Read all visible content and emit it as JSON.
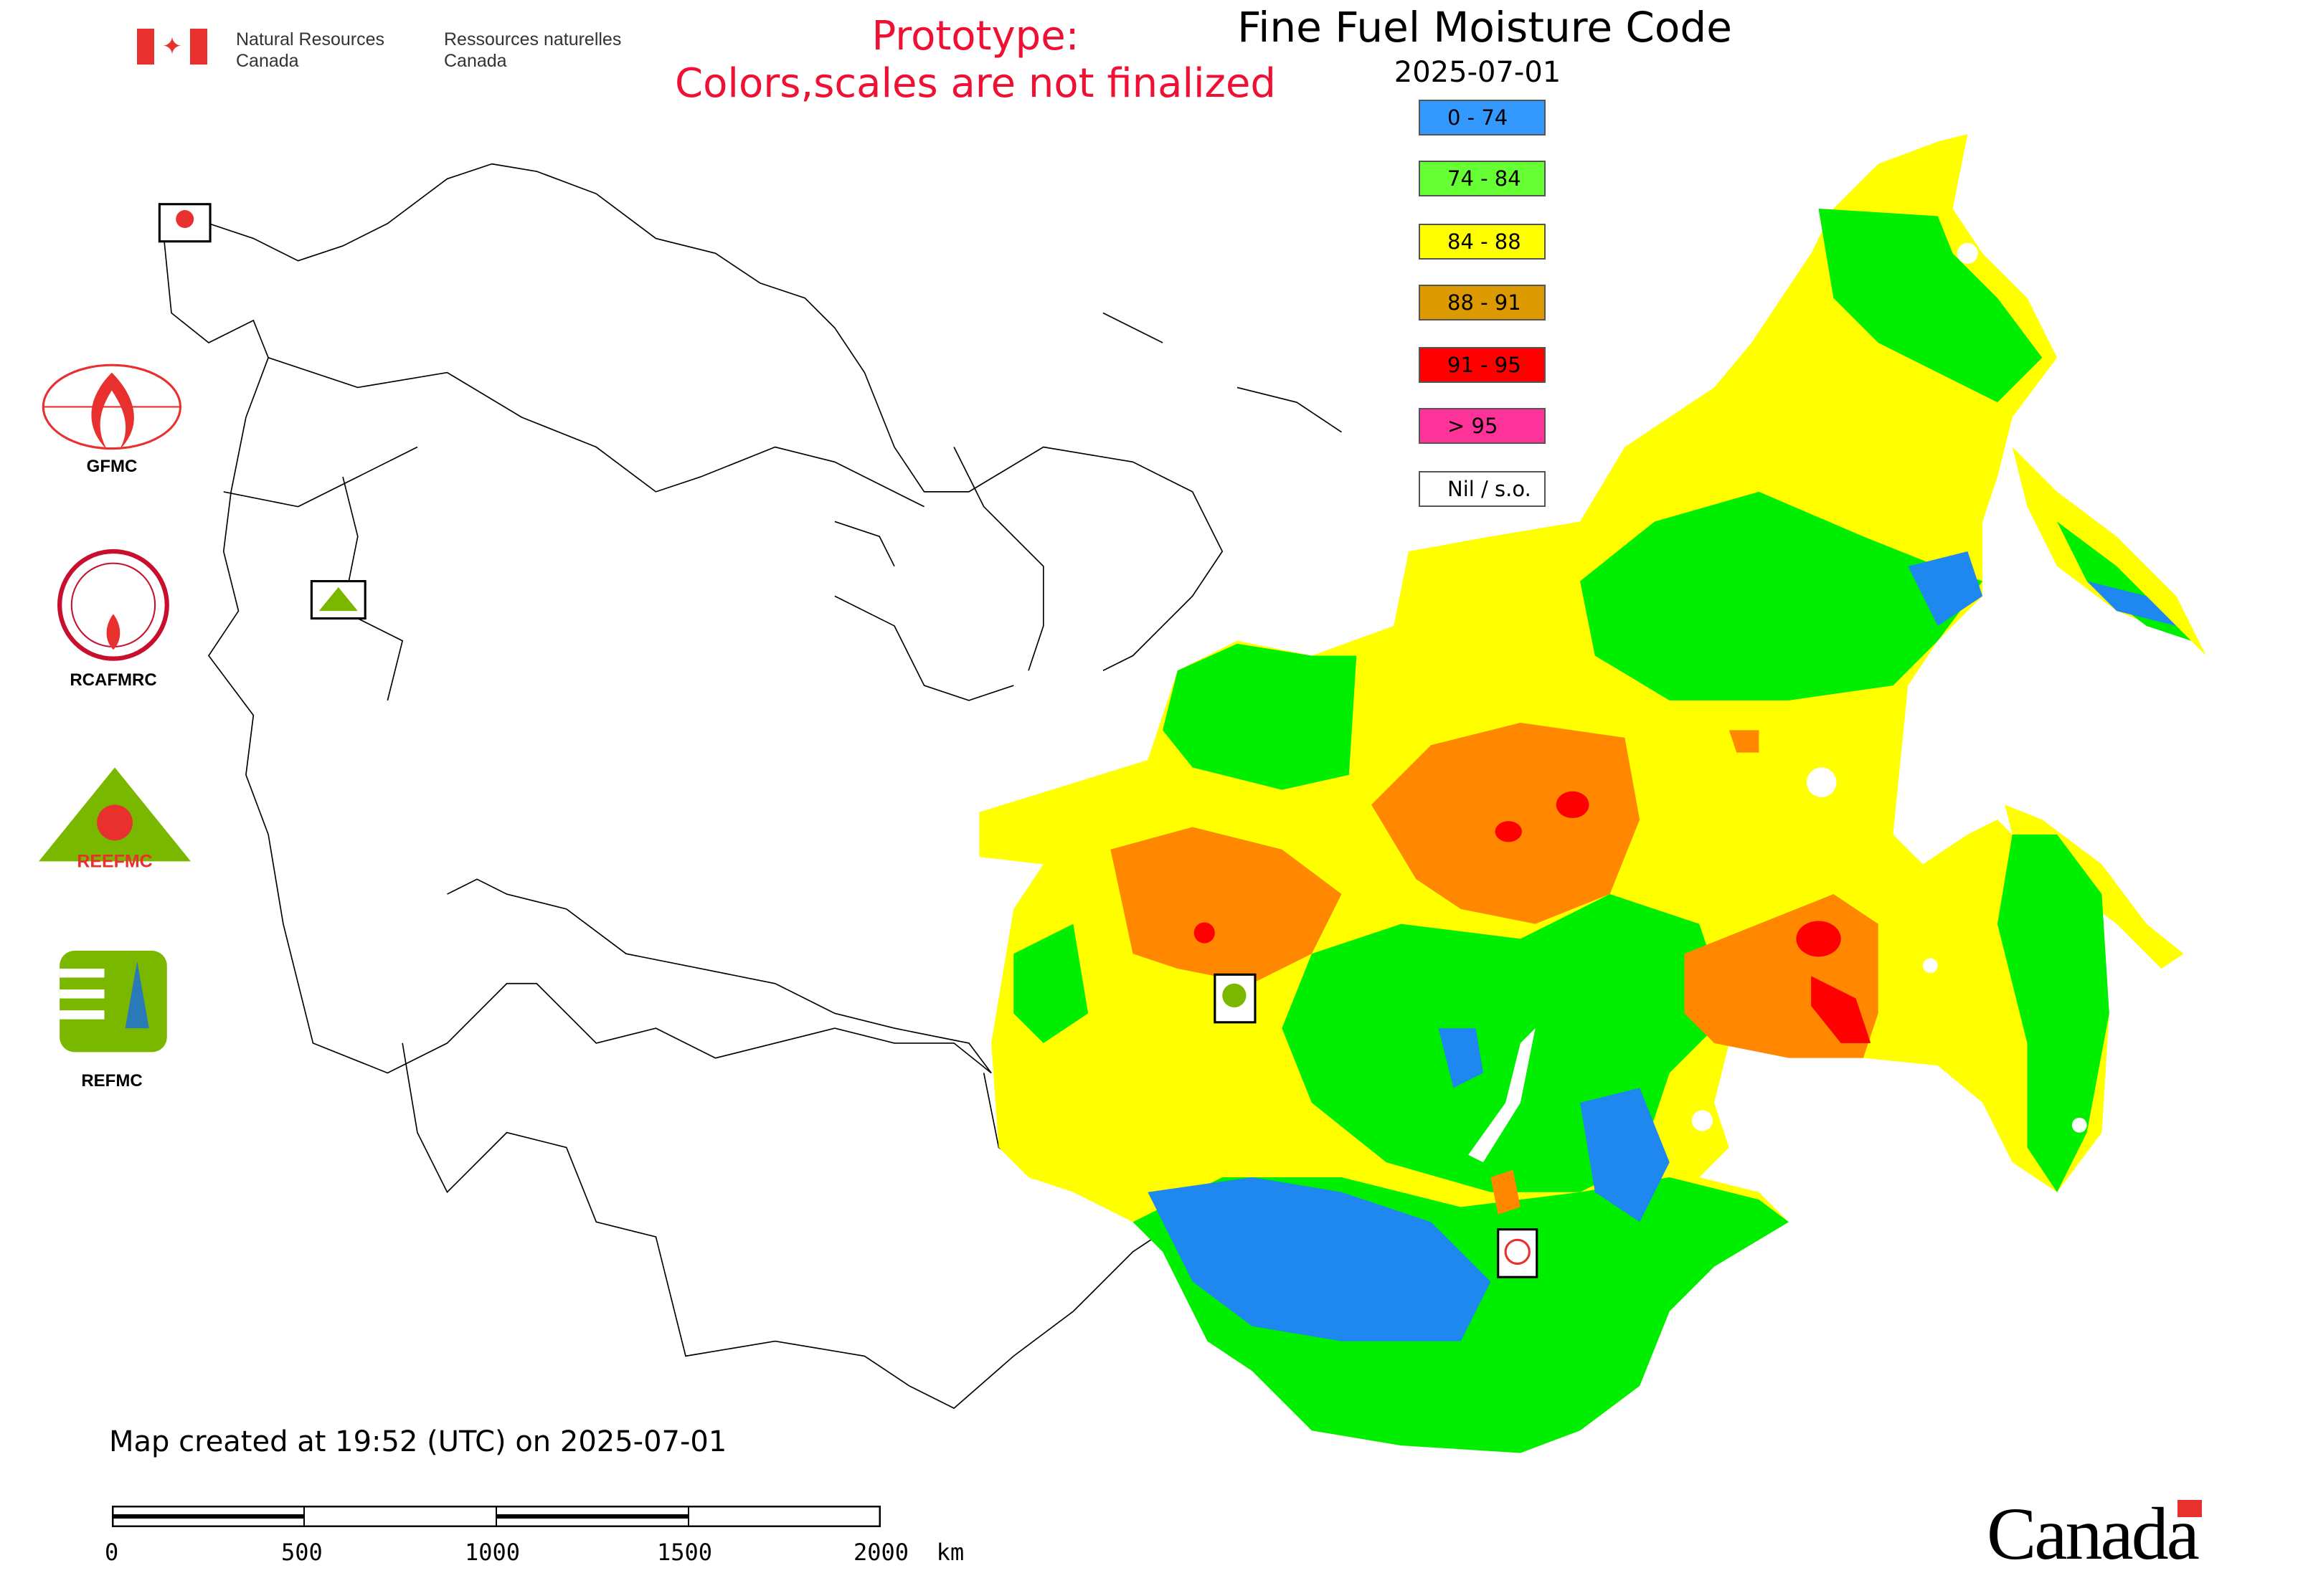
{
  "header": {
    "department_en": [
      "Natural Resources",
      "Canada"
    ],
    "department_fr": [
      "Ressources naturelles",
      "Canada"
    ],
    "prototype_line1": "Prototype:",
    "prototype_line2": "Colors,scales are not finalized",
    "title": "Fine Fuel Moisture Code",
    "date": "2025-07-01"
  },
  "legend": [
    {
      "label": "0 - 74",
      "color": "#3399ff"
    },
    {
      "label": "74 - 84",
      "color": "#66ff33"
    },
    {
      "label": "84 - 88",
      "color": "#ffff00"
    },
    {
      "label": "88 - 91",
      "color": "#dd9900"
    },
    {
      "label": "91 - 95",
      "color": "#ff0000"
    },
    {
      "label": "> 95",
      "color": "#ff3399"
    },
    {
      "label": "Nil / s.o.",
      "color": "#ffffff"
    }
  ],
  "logos": [
    {
      "label": "GFMC"
    },
    {
      "label": "RCAFMRC"
    },
    {
      "label": "REEFMC"
    },
    {
      "label": "REFMC"
    }
  ],
  "footer": {
    "created": "Map created at 19:52 (UTC) on 2025-07-01",
    "scale_labels": [
      "0",
      "500",
      "1000",
      "1500",
      "2000  km"
    ],
    "wordmark": "Canada"
  },
  "map_colors": {
    "fmc_0_74": "#1e88f0",
    "fmc_74_84": "#00ee00",
    "fmc_84_88": "#ffff00",
    "fmc_88_91": "#ff8800",
    "fmc_91_95": "#ff0000"
  }
}
